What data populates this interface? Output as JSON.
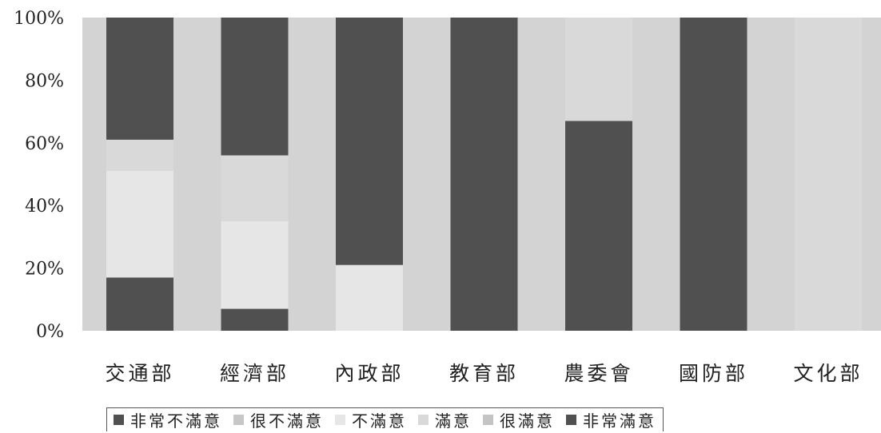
{
  "chart_data": {
    "type": "bar",
    "stacked": true,
    "categories": [
      "交通部",
      "經濟部",
      "內政部",
      "教育部",
      "農委會",
      "國防部",
      "文化部"
    ],
    "ylim": [
      0,
      100
    ],
    "yticks": [
      "0%",
      "20%",
      "40%",
      "60%",
      "80%",
      "100%"
    ],
    "grid": false,
    "legend_position": "bottom",
    "series": [
      {
        "name": "非常不滿意",
        "color": "#505050",
        "values": [
          17,
          7,
          0,
          100,
          67,
          100,
          0
        ]
      },
      {
        "name": "很不滿意",
        "color": "#c7c7c7",
        "values": [
          0,
          0,
          0,
          0,
          0,
          0,
          0
        ]
      },
      {
        "name": "不滿意",
        "color": "#e6e6e6",
        "values": [
          34,
          28,
          21,
          0,
          0,
          0,
          0
        ]
      },
      {
        "name": "滿意",
        "color": "#d9d9d9",
        "values": [
          10,
          21,
          0,
          0,
          33,
          0,
          100
        ]
      },
      {
        "name": "很滿意",
        "color": "#c4c4c4",
        "values": [
          0,
          0,
          0,
          0,
          0,
          0,
          0
        ]
      },
      {
        "name": "非常滿意",
        "color": "#505050",
        "values": [
          39,
          44,
          79,
          0,
          0,
          0,
          0
        ]
      }
    ]
  }
}
